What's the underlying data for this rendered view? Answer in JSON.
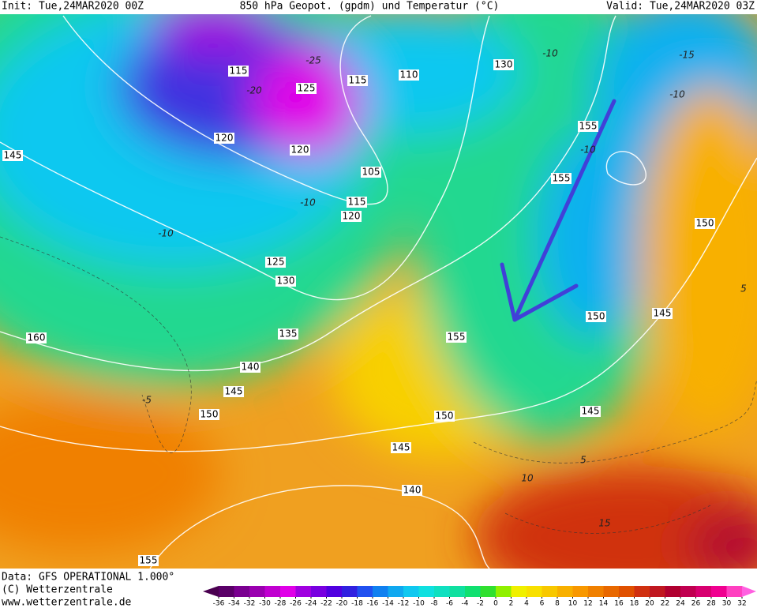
{
  "header": {
    "init": "Init: Tue,24MAR2020 00Z",
    "title": "850 hPa Geopot. (gpdm) und Temperatur (°C)",
    "valid": "Valid: Tue,24MAR2020 03Z"
  },
  "map": {
    "geopotential_labels": [
      115,
      125,
      115,
      110,
      130,
      120,
      120,
      105,
      155,
      155,
      115,
      120,
      145,
      150,
      125,
      130,
      150,
      145,
      135,
      155,
      160,
      140,
      145,
      150,
      150,
      145,
      145,
      140,
      155
    ],
    "temperature_labels": [
      -25,
      -20,
      -10,
      -10,
      -5,
      5,
      10,
      15,
      -10,
      -15,
      -10,
      5,
      -10
    ]
  },
  "colorbar": {
    "ticks": [
      -36,
      -34,
      -32,
      -30,
      -28,
      -26,
      -24,
      -22,
      -20,
      -18,
      -16,
      -14,
      -12,
      -10,
      -8,
      -6,
      -4,
      -2,
      0,
      2,
      4,
      6,
      8,
      10,
      12,
      14,
      16,
      18,
      20,
      22,
      24,
      26,
      28,
      30,
      32
    ],
    "colors": [
      "#4a0050",
      "#5a0068",
      "#7a0090",
      "#9a00b0",
      "#c000d0",
      "#e000e8",
      "#a000e0",
      "#7800e0",
      "#5000e0",
      "#3020e0",
      "#2050f0",
      "#1080f0",
      "#10a8f0",
      "#10c8f0",
      "#10e0e0",
      "#10e0c0",
      "#10e0a0",
      "#10e070",
      "#30e030",
      "#90f000",
      "#f0f000",
      "#f8e000",
      "#f8c800",
      "#f8b000",
      "#f89800",
      "#f08000",
      "#e86800",
      "#e05000",
      "#d03010",
      "#c01820",
      "#b00030",
      "#c00050",
      "#d80070",
      "#f00090",
      "#ff40c0",
      "#ff60e0"
    ]
  },
  "footer": {
    "data": "Data: GFS OPERATIONAL 1.000°",
    "copyright": "(C) Wetterzentrale",
    "url": "www.wetterzentrale.de"
  }
}
